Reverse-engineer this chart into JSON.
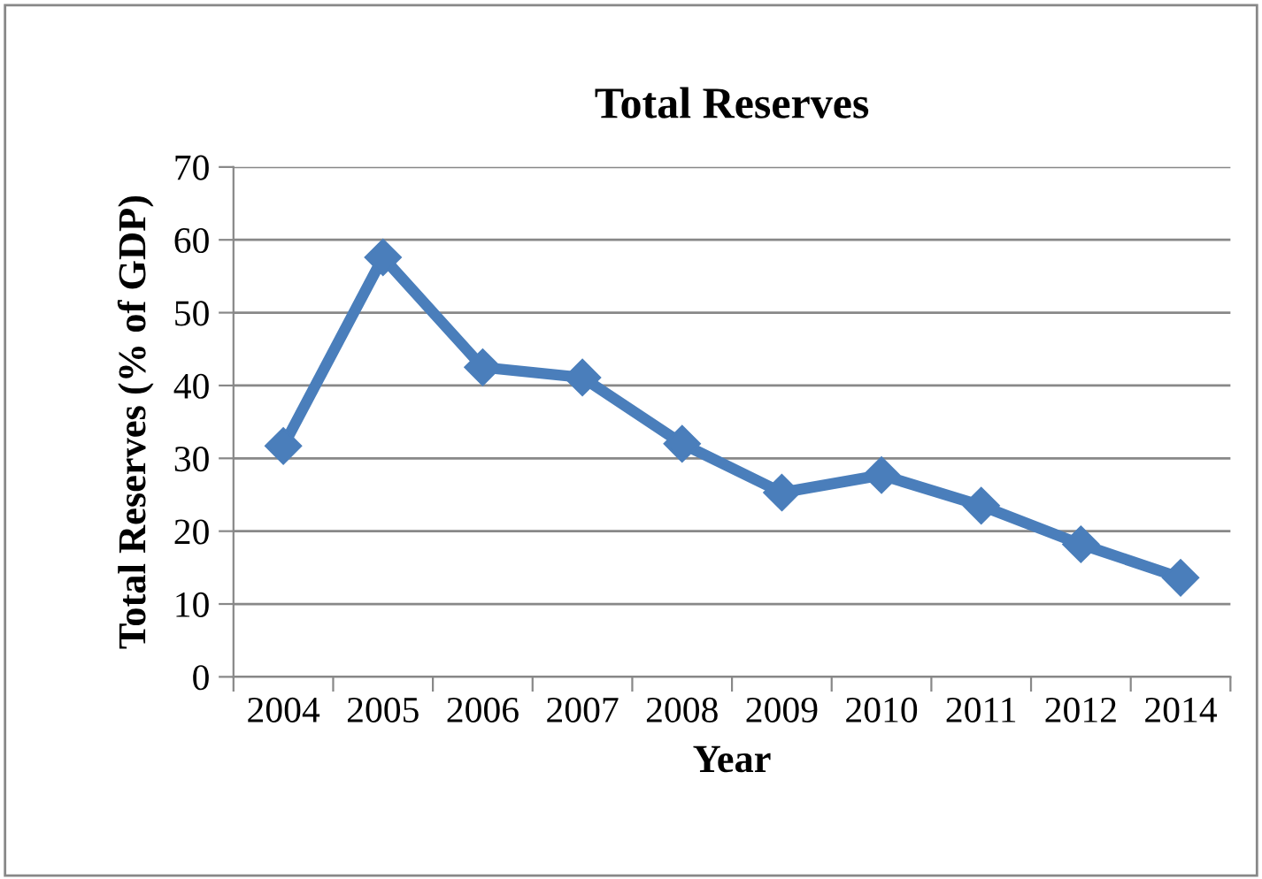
{
  "chart_data": {
    "type": "line",
    "title": "Total Reserves",
    "xlabel": "Year",
    "ylabel": "Total Reserves (% of GDP)",
    "categories": [
      "2004",
      "2005",
      "2006",
      "2007",
      "2008",
      "2009",
      "2010",
      "2011",
      "2012",
      "2014"
    ],
    "series": [
      {
        "color": "#4a7ebb",
        "values": [
          31.7,
          57.6,
          42.5,
          41.1,
          32.0,
          25.3,
          27.7,
          23.5,
          18.2,
          13.6
        ]
      }
    ],
    "ylim": [
      0,
      70
    ],
    "yticks": [
      0,
      10,
      20,
      30,
      40,
      50,
      60,
      70
    ],
    "grid": "y",
    "legend": false,
    "marker": "diamond",
    "line_style": "solid"
  }
}
